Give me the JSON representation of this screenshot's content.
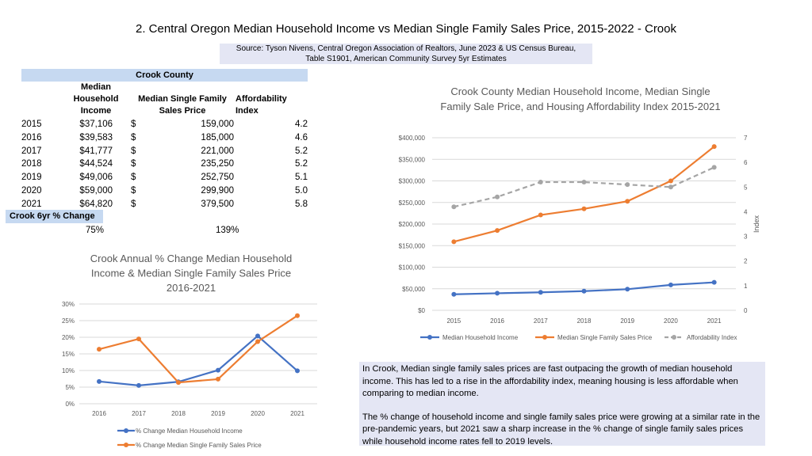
{
  "title": "2. Central Oregon Median Household Income vs Median Single Family Sales Price, 2015-2022 - Crook",
  "source": {
    "line1": "Source: Tyson Nivens, Central Oregon Association of Realtors, June 2023 & US Census Bureau,",
    "line2": "Table S1901, American Community Survey 5yr Estimates"
  },
  "table": {
    "county_label": "Crook County",
    "headers": {
      "income": [
        "Median",
        "Household",
        "Income"
      ],
      "price": [
        "Median Single Family",
        "Sales Price"
      ],
      "index": [
        "Affordability",
        "Index"
      ]
    },
    "rows": [
      {
        "year": "2015",
        "income": "$37,106",
        "cur": "$",
        "price": "159,000",
        "index": "4.2"
      },
      {
        "year": "2016",
        "income": "$39,583",
        "cur": "$",
        "price": "185,000",
        "index": "4.6"
      },
      {
        "year": "2017",
        "income": "$41,777",
        "cur": "$",
        "price": "221,000",
        "index": "5.2"
      },
      {
        "year": "2018",
        "income": "$44,524",
        "cur": "$",
        "price": "235,250",
        "index": "5.2"
      },
      {
        "year": "2019",
        "income": "$49,006",
        "cur": "$",
        "price": "252,750",
        "index": "5.1"
      },
      {
        "year": "2020",
        "income": "$59,000",
        "cur": "$",
        "price": "299,900",
        "index": "5.0"
      },
      {
        "year": "2021",
        "income": "$64,820",
        "cur": "$",
        "price": "379,500",
        "index": "5.8"
      }
    ],
    "change_label": "Crook 6yr % Change",
    "income_change": "75%",
    "price_change": "139%"
  },
  "note": {
    "p1": "In Crook, Median single family sales prices are fast outpacing the growth of median household income. This has led to a rise in the affordability index, meaning housing is less affordable when comparing to median income.",
    "p2": "The % change of household income and single family sales price were growing at a similar rate in the pre-pandemic years, but 2021 saw a sharp increase in the % change of single family sales prices while household income rates fell to 2019 levels."
  },
  "colors": {
    "income": "#4472c4",
    "price": "#ed7d31",
    "index": "#a5a5a5",
    "grid": "#d9d9d9",
    "axis": "#595959"
  },
  "chart_data": [
    {
      "type": "line",
      "title": [
        "Crook Annual % Change Median Household",
        "Income & Median Single Family Sales Price",
        "2016-2021"
      ],
      "categories": [
        "2016",
        "2017",
        "2018",
        "2019",
        "2020",
        "2021"
      ],
      "series": [
        {
          "name": "% Change Median Household Income",
          "values": [
            6.7,
            5.5,
            6.6,
            10.1,
            20.4,
            9.9
          ]
        },
        {
          "name": "% Change Median Single Family Sales Price",
          "values": [
            16.4,
            19.5,
            6.4,
            7.4,
            18.7,
            26.5
          ]
        }
      ],
      "yticks": [
        "0%",
        "5%",
        "10%",
        "15%",
        "20%",
        "25%",
        "30%"
      ],
      "ylim": [
        0,
        30
      ],
      "grid": true,
      "legend": "bottom"
    },
    {
      "type": "line",
      "title": [
        "Crook County Median Household Income, Median Single",
        "Family Sale Price, and Housing Affordability Index 2015-2021"
      ],
      "categories": [
        "2015",
        "2016",
        "2017",
        "2018",
        "2019",
        "2020",
        "2021"
      ],
      "series": [
        {
          "name": "Median Household Income",
          "axis": "left",
          "values": [
            37106,
            39583,
            41777,
            44524,
            49006,
            59000,
            64820
          ]
        },
        {
          "name": "Median Single Family Sales Price",
          "axis": "left",
          "values": [
            159000,
            185000,
            221000,
            235250,
            252750,
            299900,
            379500
          ]
        },
        {
          "name": "Affordability Index",
          "axis": "right",
          "values": [
            4.2,
            4.6,
            5.2,
            5.2,
            5.1,
            5.0,
            5.8
          ]
        }
      ],
      "yticks_left": [
        "$0",
        "$50,000",
        "$100,000",
        "$150,000",
        "$200,000",
        "$250,000",
        "$300,000",
        "$350,000",
        "$400,000"
      ],
      "ylim_left": [
        0,
        400000
      ],
      "yticks_right": [
        "0",
        "1",
        "2",
        "3",
        "4",
        "5",
        "6",
        "7"
      ],
      "ylim_right": [
        0,
        7
      ],
      "ylabel_right": "Index",
      "grid": true,
      "legend": "bottom"
    }
  ]
}
